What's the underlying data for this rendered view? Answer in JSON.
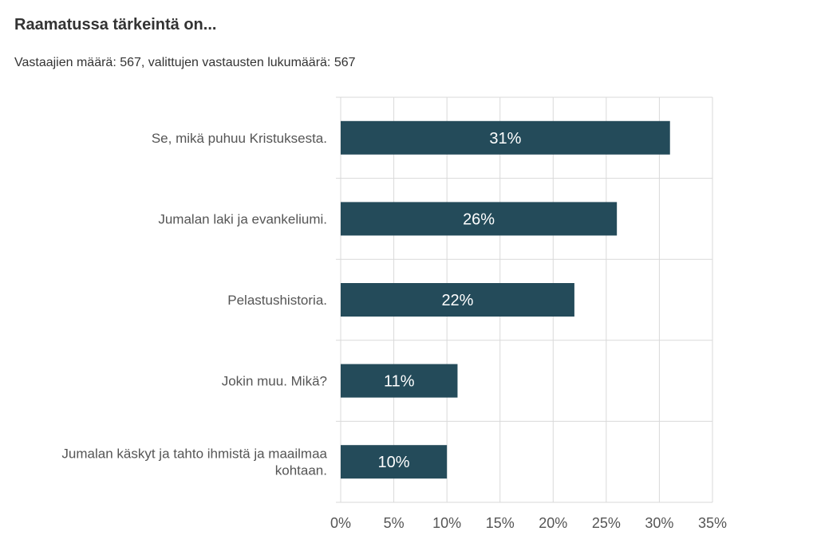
{
  "title": "Raamatussa tärkeintä on...",
  "subtitle": "Vastaajien määrä: 567, valittujen vastausten lukumäärä: 567",
  "chart_data": {
    "type": "bar",
    "orientation": "horizontal",
    "categories": [
      [
        "Se, mikä puhuu Kristuksesta."
      ],
      [
        "Jumalan laki ja evankeliumi."
      ],
      [
        "Pelastushistoria."
      ],
      [
        "Jokin muu. Mikä?"
      ],
      [
        "Jumalan käskyt ja tahto ihmistä ja maailmaa",
        "kohtaan."
      ]
    ],
    "values": [
      31,
      26,
      22,
      11,
      10
    ],
    "value_labels": [
      "31%",
      "26%",
      "22%",
      "11%",
      "10%"
    ],
    "xlim": [
      0,
      35
    ],
    "xticks": [
      0,
      5,
      10,
      15,
      20,
      25,
      30,
      35
    ],
    "xtick_labels": [
      "0%",
      "5%",
      "10%",
      "15%",
      "20%",
      "25%",
      "30%",
      "35%"
    ],
    "grid": true,
    "bar_color": "#244b5a",
    "grid_color": "#d9d9d9",
    "label_color": "#ffffff"
  }
}
